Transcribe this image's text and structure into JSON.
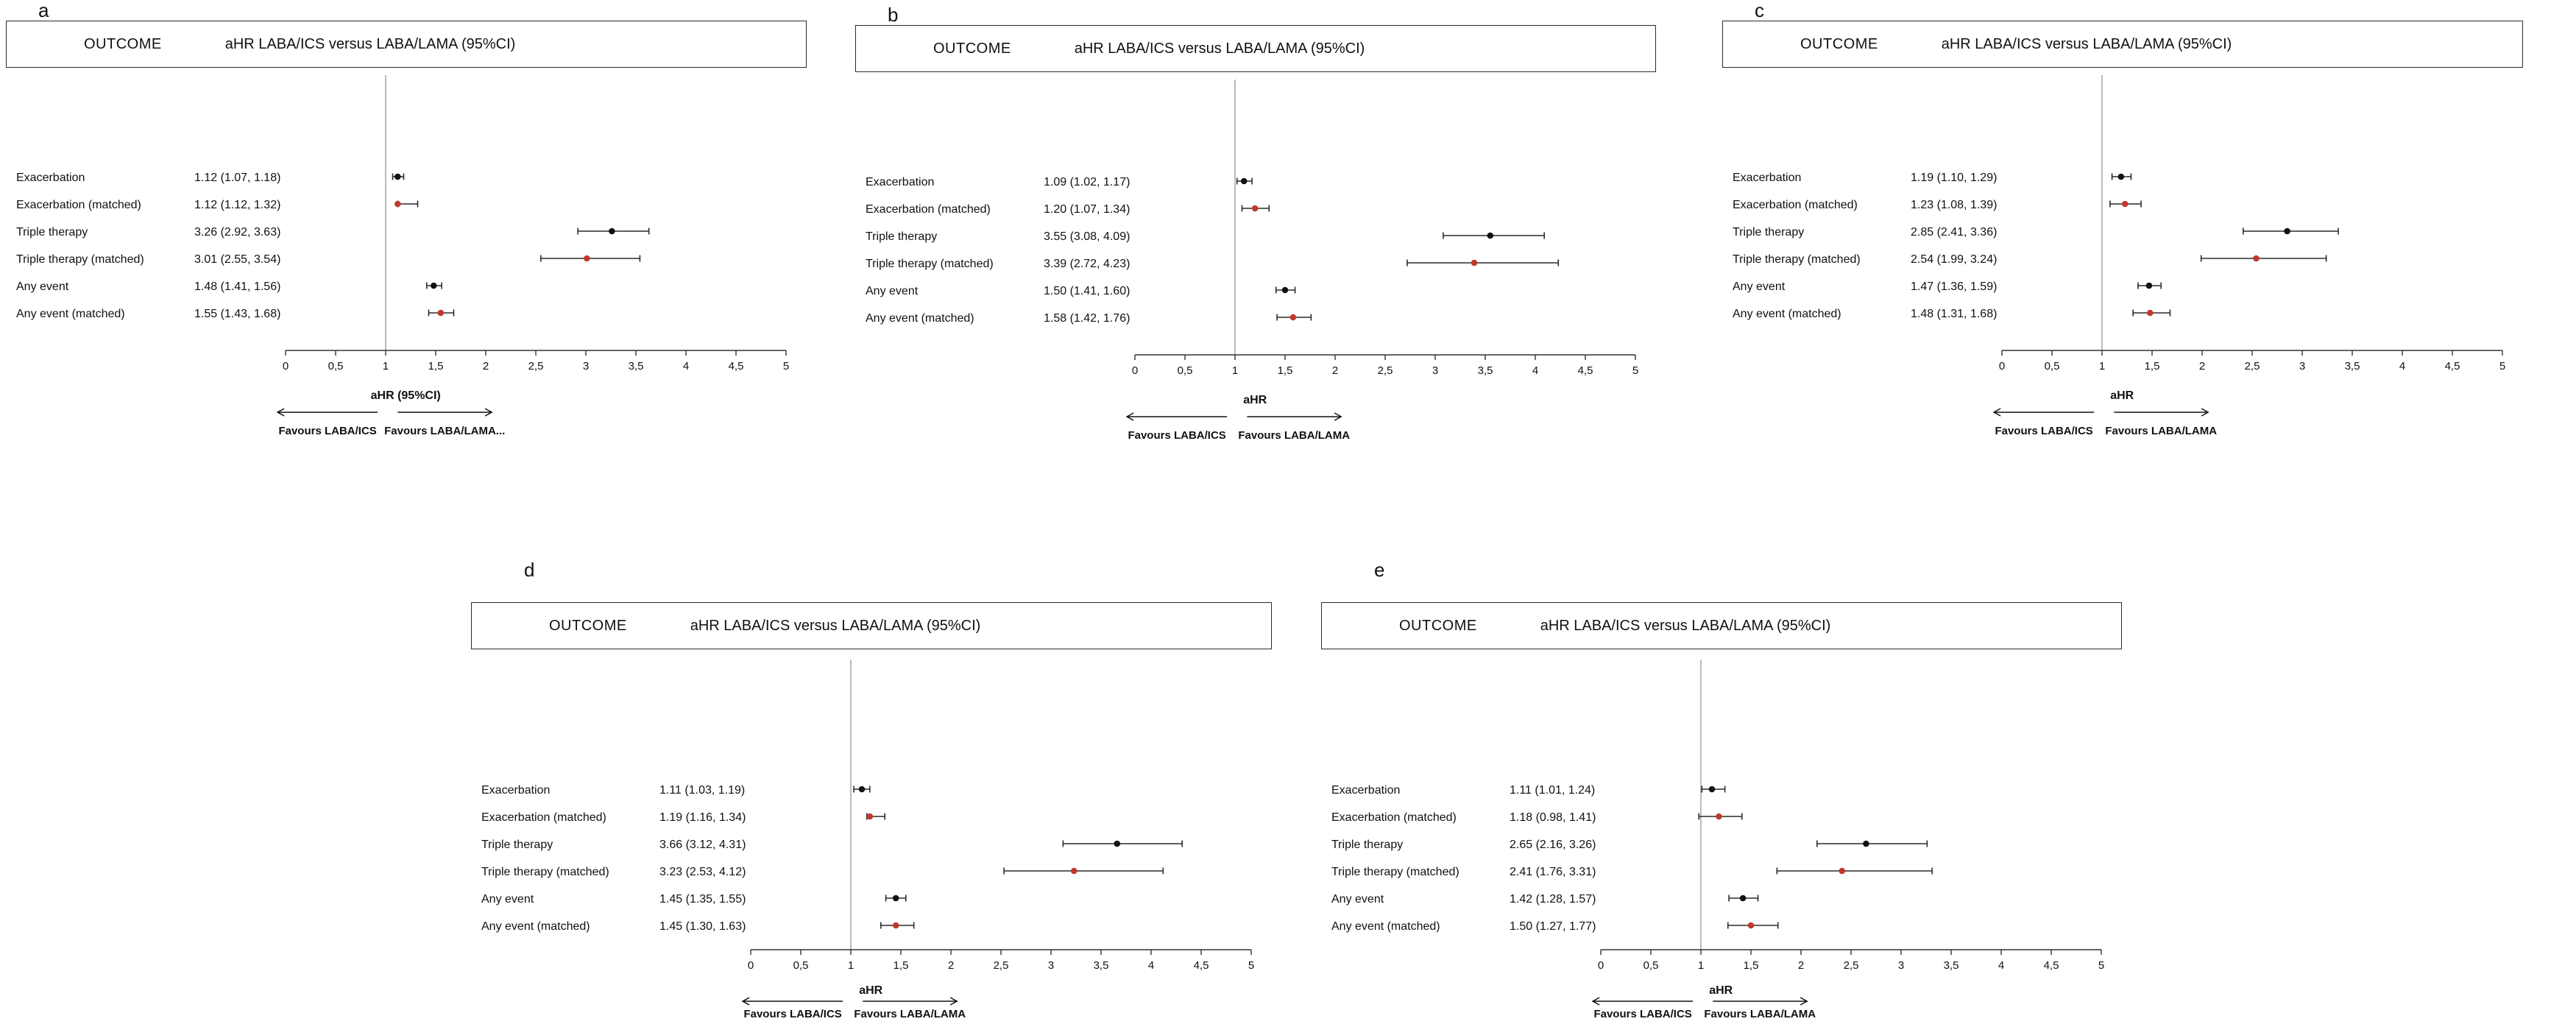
{
  "figure": {
    "background": "#ffffff",
    "header": {
      "outcome_label": "OUTCOME",
      "effect_label": "aHR LABA/ICS versus LABA/LAMA (95%CI)"
    },
    "axis": {
      "xlim": [
        0,
        5
      ],
      "reference_line": 1,
      "tick_values": [
        0,
        0.5,
        1,
        1.5,
        2,
        2.5,
        3,
        3.5,
        4,
        4.5,
        5
      ],
      "tick_labels": [
        "0",
        "0,5",
        "1",
        "1,5",
        "2",
        "2,5",
        "3",
        "3,5",
        "4",
        "4,5",
        "5"
      ],
      "grid": "off"
    },
    "colors": {
      "unmatched_marker": "#111111",
      "matched_marker": "#c0392b",
      "ci_line": "#2b2b2b",
      "axis": "#333333",
      "reference": "#777777"
    }
  },
  "chart_data": [
    {
      "type": "scatter",
      "variant": "forest",
      "panel": "a",
      "x_axis_label": "aHR (95%CI)",
      "favours_left": "Favours LABA/ICS",
      "favours_right": "Favours LABA/LAMA...",
      "xlim": [
        0,
        5
      ],
      "reference": 1,
      "rows": [
        {
          "label": "Exacerbation",
          "display": "1.12 (1.07, 1.18)",
          "est": 1.12,
          "lo": 1.07,
          "hi": 1.18,
          "matched": false
        },
        {
          "label": "Exacerbation (matched)",
          "display": "1.12 (1.12, 1.32)",
          "est": 1.12,
          "lo": 1.12,
          "hi": 1.32,
          "matched": true
        },
        {
          "label": "Triple therapy",
          "display": "3.26 (2.92, 3.63)",
          "est": 3.26,
          "lo": 2.92,
          "hi": 3.63,
          "matched": false
        },
        {
          "label": "Triple therapy (matched)",
          "display": "3.01 (2.55, 3.54)",
          "est": 3.01,
          "lo": 2.55,
          "hi": 3.54,
          "matched": true
        },
        {
          "label": "Any event",
          "display": "1.48 (1.41, 1.56)",
          "est": 1.48,
          "lo": 1.41,
          "hi": 1.56,
          "matched": false
        },
        {
          "label": "Any event (matched)",
          "display": "1.55 (1.43, 1.68)",
          "est": 1.55,
          "lo": 1.43,
          "hi": 1.68,
          "matched": true
        }
      ]
    },
    {
      "type": "scatter",
      "variant": "forest",
      "panel": "b",
      "x_axis_label": "aHR",
      "favours_left": "Favours LABA/ICS",
      "favours_right": "Favours LABA/LAMA",
      "xlim": [
        0,
        5
      ],
      "reference": 1,
      "rows": [
        {
          "label": "Exacerbation",
          "display": "1.09 (1.02, 1.17)",
          "est": 1.09,
          "lo": 1.02,
          "hi": 1.17,
          "matched": false
        },
        {
          "label": "Exacerbation (matched)",
          "display": "1.20 (1.07, 1.34)",
          "est": 1.2,
          "lo": 1.07,
          "hi": 1.34,
          "matched": true
        },
        {
          "label": "Triple therapy",
          "display": "3.55 (3.08, 4.09)",
          "est": 3.55,
          "lo": 3.08,
          "hi": 4.09,
          "matched": false
        },
        {
          "label": "Triple therapy (matched)",
          "display": "3.39 (2.72, 4.23)",
          "est": 3.39,
          "lo": 2.72,
          "hi": 4.23,
          "matched": true
        },
        {
          "label": "Any event",
          "display": "1.50 (1.41, 1.60)",
          "est": 1.5,
          "lo": 1.41,
          "hi": 1.6,
          "matched": false
        },
        {
          "label": "Any event (matched)",
          "display": "1.58 (1.42, 1.76)",
          "est": 1.58,
          "lo": 1.42,
          "hi": 1.76,
          "matched": true
        }
      ]
    },
    {
      "type": "scatter",
      "variant": "forest",
      "panel": "c",
      "x_axis_label": "aHR",
      "favours_left": "Favours LABA/ICS",
      "favours_right": "Favours LABA/LAMA",
      "xlim": [
        0,
        5
      ],
      "reference": 1,
      "rows": [
        {
          "label": "Exacerbation",
          "display": "1.19 (1.10, 1.29)",
          "est": 1.19,
          "lo": 1.1,
          "hi": 1.29,
          "matched": false
        },
        {
          "label": "Exacerbation (matched)",
          "display": "1.23 (1.08, 1.39)",
          "est": 1.23,
          "lo": 1.08,
          "hi": 1.39,
          "matched": true
        },
        {
          "label": "Triple therapy",
          "display": "2.85 (2.41, 3.36)",
          "est": 2.85,
          "lo": 2.41,
          "hi": 3.36,
          "matched": false
        },
        {
          "label": "Triple therapy (matched)",
          "display": "2.54 (1.99, 3.24)",
          "est": 2.54,
          "lo": 1.99,
          "hi": 3.24,
          "matched": true
        },
        {
          "label": "Any event",
          "display": "1.47 (1.36, 1.59)",
          "est": 1.47,
          "lo": 1.36,
          "hi": 1.59,
          "matched": false
        },
        {
          "label": "Any event (matched)",
          "display": "1.48 (1.31, 1.68)",
          "est": 1.48,
          "lo": 1.31,
          "hi": 1.68,
          "matched": true
        }
      ]
    },
    {
      "type": "scatter",
      "variant": "forest",
      "panel": "d",
      "x_axis_label": "aHR",
      "favours_left": "Favours LABA/ICS",
      "favours_right": "Favours LABA/LAMA",
      "xlim": [
        0,
        5
      ],
      "reference": 1,
      "rows": [
        {
          "label": "Exacerbation",
          "display": "1.11 (1.03, 1.19)",
          "est": 1.11,
          "lo": 1.03,
          "hi": 1.19,
          "matched": false
        },
        {
          "label": "Exacerbation (matched)",
          "display": "1.19 (1.16, 1.34)",
          "est": 1.19,
          "lo": 1.16,
          "hi": 1.34,
          "matched": true
        },
        {
          "label": "Triple therapy",
          "display": "3.66 (3.12, 4.31)",
          "est": 3.66,
          "lo": 3.12,
          "hi": 4.31,
          "matched": false
        },
        {
          "label": "Triple therapy (matched)",
          "display": "3.23 (2.53, 4.12)",
          "est": 3.23,
          "lo": 2.53,
          "hi": 4.12,
          "matched": true
        },
        {
          "label": "Any event",
          "display": "1.45 (1.35, 1.55)",
          "est": 1.45,
          "lo": 1.35,
          "hi": 1.55,
          "matched": false
        },
        {
          "label": "Any event (matched)",
          "display": "1.45 (1.30, 1.63)",
          "est": 1.45,
          "lo": 1.3,
          "hi": 1.63,
          "matched": true
        }
      ]
    },
    {
      "type": "scatter",
      "variant": "forest",
      "panel": "e",
      "x_axis_label": "aHR",
      "favours_left": "Favours LABA/ICS",
      "favours_right": "Favours LABA/LAMA",
      "xlim": [
        0,
        5
      ],
      "reference": 1,
      "rows": [
        {
          "label": "Exacerbation",
          "display": "1.11 (1.01, 1.24)",
          "est": 1.11,
          "lo": 1.01,
          "hi": 1.24,
          "matched": false
        },
        {
          "label": "Exacerbation (matched)",
          "display": "1.18 (0.98, 1.41)",
          "est": 1.18,
          "lo": 0.98,
          "hi": 1.41,
          "matched": true
        },
        {
          "label": "Triple therapy",
          "display": "2.65 (2.16, 3.26)",
          "est": 2.65,
          "lo": 2.16,
          "hi": 3.26,
          "matched": false
        },
        {
          "label": "Triple therapy (matched)",
          "display": "2.41 (1.76, 3.31)",
          "est": 2.41,
          "lo": 1.76,
          "hi": 3.31,
          "matched": true
        },
        {
          "label": "Any event",
          "display": "1.42 (1.28, 1.57)",
          "est": 1.42,
          "lo": 1.28,
          "hi": 1.57,
          "matched": false
        },
        {
          "label": "Any event (matched)",
          "display": "1.50 (1.27, 1.77)",
          "est": 1.5,
          "lo": 1.27,
          "hi": 1.77,
          "matched": true
        }
      ]
    }
  ]
}
